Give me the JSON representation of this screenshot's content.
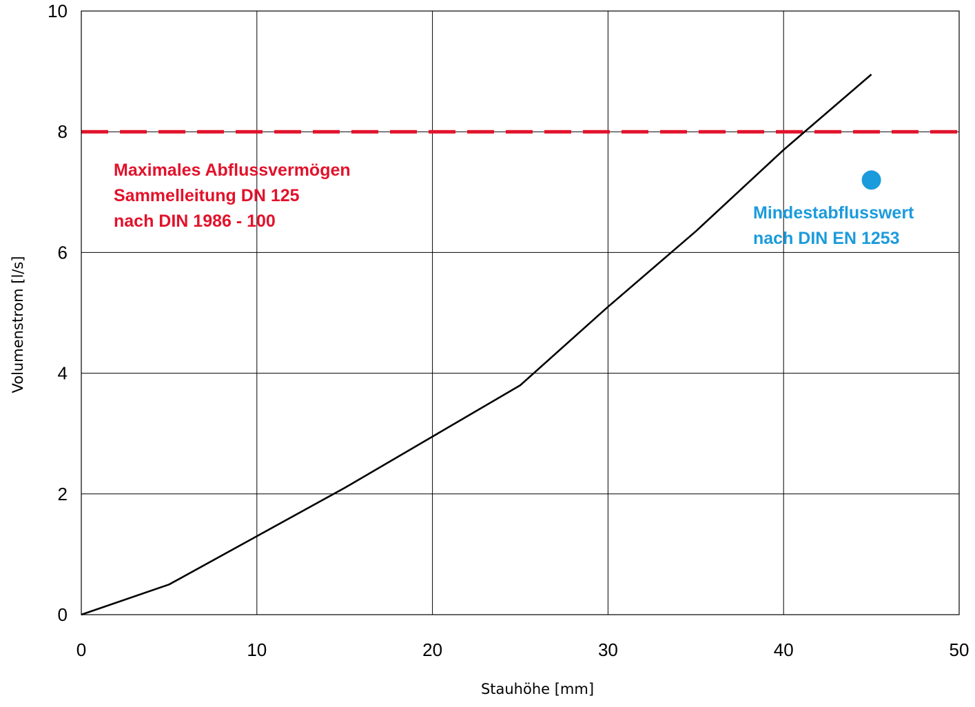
{
  "chart_data": {
    "type": "line",
    "title": "",
    "xlabel": "Stauhöhe [mm]",
    "ylabel": "Volumenstrom [l/s]",
    "xlim": [
      0,
      50
    ],
    "ylim": [
      0,
      10
    ],
    "x_ticks": [
      "0",
      "10",
      "20",
      "30",
      "40",
      "50"
    ],
    "y_ticks": [
      "0",
      "2",
      "4",
      "6",
      "8",
      "10"
    ],
    "grid": true,
    "series": [
      {
        "x": [
          0,
          5,
          10,
          15,
          20,
          25,
          30,
          35,
          40,
          45
        ],
        "y": [
          0,
          0.5,
          1.3,
          2.1,
          2.95,
          3.8,
          5.1,
          6.35,
          7.7,
          8.95
        ],
        "color": "#000000"
      }
    ],
    "reference_line": {
      "y": 8.0,
      "style": "dashed",
      "color": "#E2122B",
      "label_lines": [
        "Maximales Abflussvermögen",
        "Sammelleitung DN 125",
        "nach DIN 1986 - 100"
      ]
    },
    "marker": {
      "x": 45,
      "y": 7.2,
      "color": "#1B9BDC",
      "label_lines": [
        "Mindestabflusswert",
        "nach DIN EN 1253"
      ]
    }
  }
}
